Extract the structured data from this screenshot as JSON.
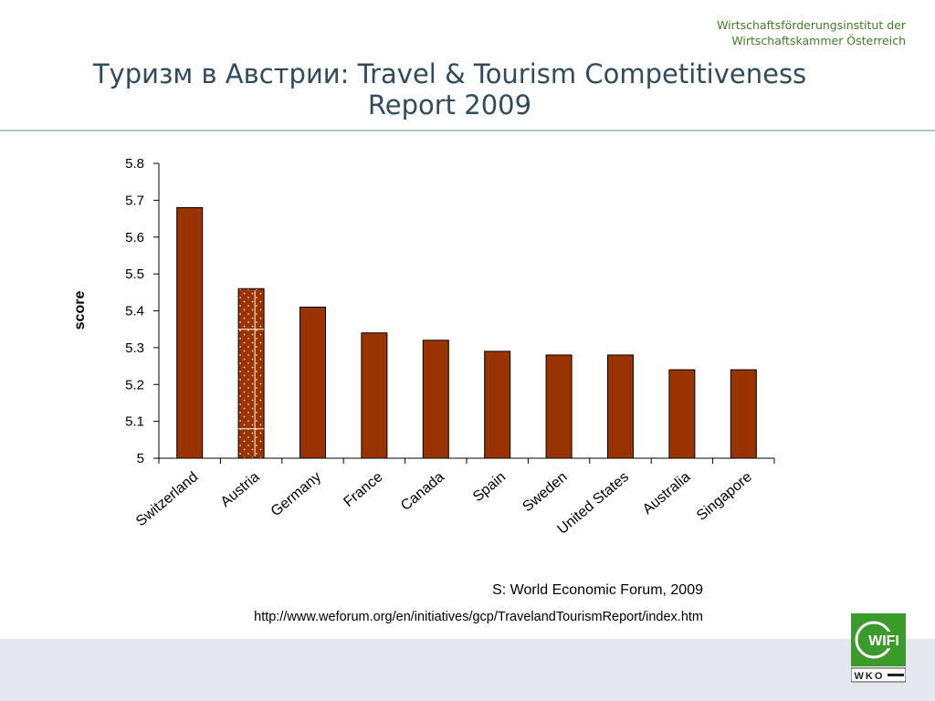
{
  "header": {
    "org_line1": "Wirtschaftsförderungsinstitut der",
    "org_line2": "Wirtschaftskammer Österreich",
    "title_line1": "Туризм в Австрии: Travel & Tourism Competitiveness",
    "title_line2": "Report 2009"
  },
  "chart_data": {
    "type": "bar",
    "categories": [
      "Switzerland",
      "Austria",
      "Germany",
      "France",
      "Canada",
      "Spain",
      "Sweden",
      "United States",
      "Australia",
      "Singapore"
    ],
    "values": [
      5.68,
      5.46,
      5.41,
      5.34,
      5.32,
      5.29,
      5.28,
      5.28,
      5.24,
      5.24
    ],
    "ylabel": "score",
    "xlabel": "",
    "ylim": [
      5,
      5.8
    ],
    "yticks": [
      "5",
      "5.1",
      "5.2",
      "5.3",
      "5.4",
      "5.5",
      "5.6",
      "5.7",
      "5.8"
    ],
    "highlighted_category": "Austria",
    "bar_color": "#993300",
    "grid": false
  },
  "footer": {
    "source": "S: World Economic Forum, 2009",
    "url": "http://www.weforum.org/en/initiatives/gcp/TravelandTourismReport/index.htm",
    "logo_text": "WIFI",
    "logo_sub": "WKO",
    "logo_color": "#3a9a2a"
  }
}
